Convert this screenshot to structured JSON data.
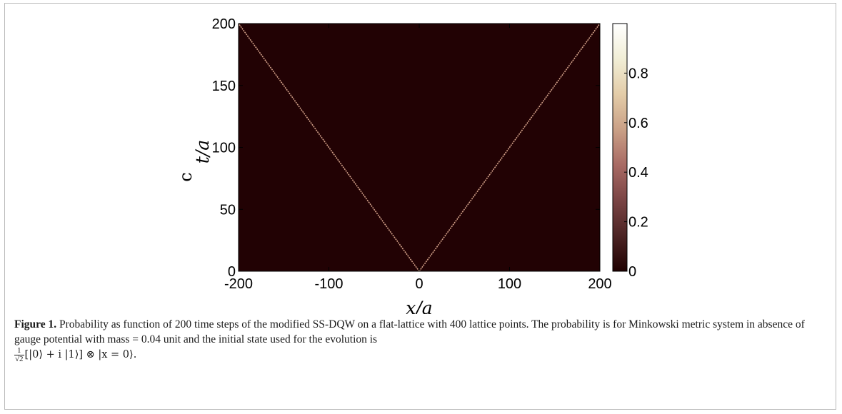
{
  "chart_data": {
    "type": "heatmap",
    "title": "",
    "xlabel": "x/a",
    "ylabel": "t/a",
    "ylabel_prefix": "c",
    "xlim": [
      -200,
      200
    ],
    "ylim": [
      0,
      200
    ],
    "x_ticks": [
      "-200",
      "-100",
      "0",
      "100",
      "200"
    ],
    "y_ticks": [
      "0",
      "50",
      "100",
      "150",
      "200"
    ],
    "colorbar": {
      "range": [
        0,
        1
      ],
      "ticks": [
        "0",
        "0.2",
        "0.4",
        "0.6",
        "0.8"
      ],
      "colors": [
        "#1f0000",
        "#4c2424",
        "#7a4444",
        "#a86a64",
        "#caa086",
        "#e3cca8",
        "#f1eed6",
        "#ffffff"
      ]
    },
    "background_color": "#220204",
    "trace_color": "#d4a28a",
    "series": [
      {
        "x": [
          0,
          -200
        ],
        "y": [
          0,
          200
        ]
      },
      {
        "x": [
          0,
          200
        ],
        "y": [
          0,
          200
        ]
      }
    ]
  },
  "caption": {
    "label": "Figure 1.",
    "text1": "Probability as function of 200 time steps of the modified SS-DQW on a flat-lattice with 400 lattice points. The probability is for Minkowski metric system in absence of gauge potential with mass = 0.04 unit and the initial state used for the evolution is",
    "frac_num": "1",
    "frac_den": "√2",
    "formula": "[|0⟩ + i |1⟩] ⊗ |x = 0⟩."
  }
}
